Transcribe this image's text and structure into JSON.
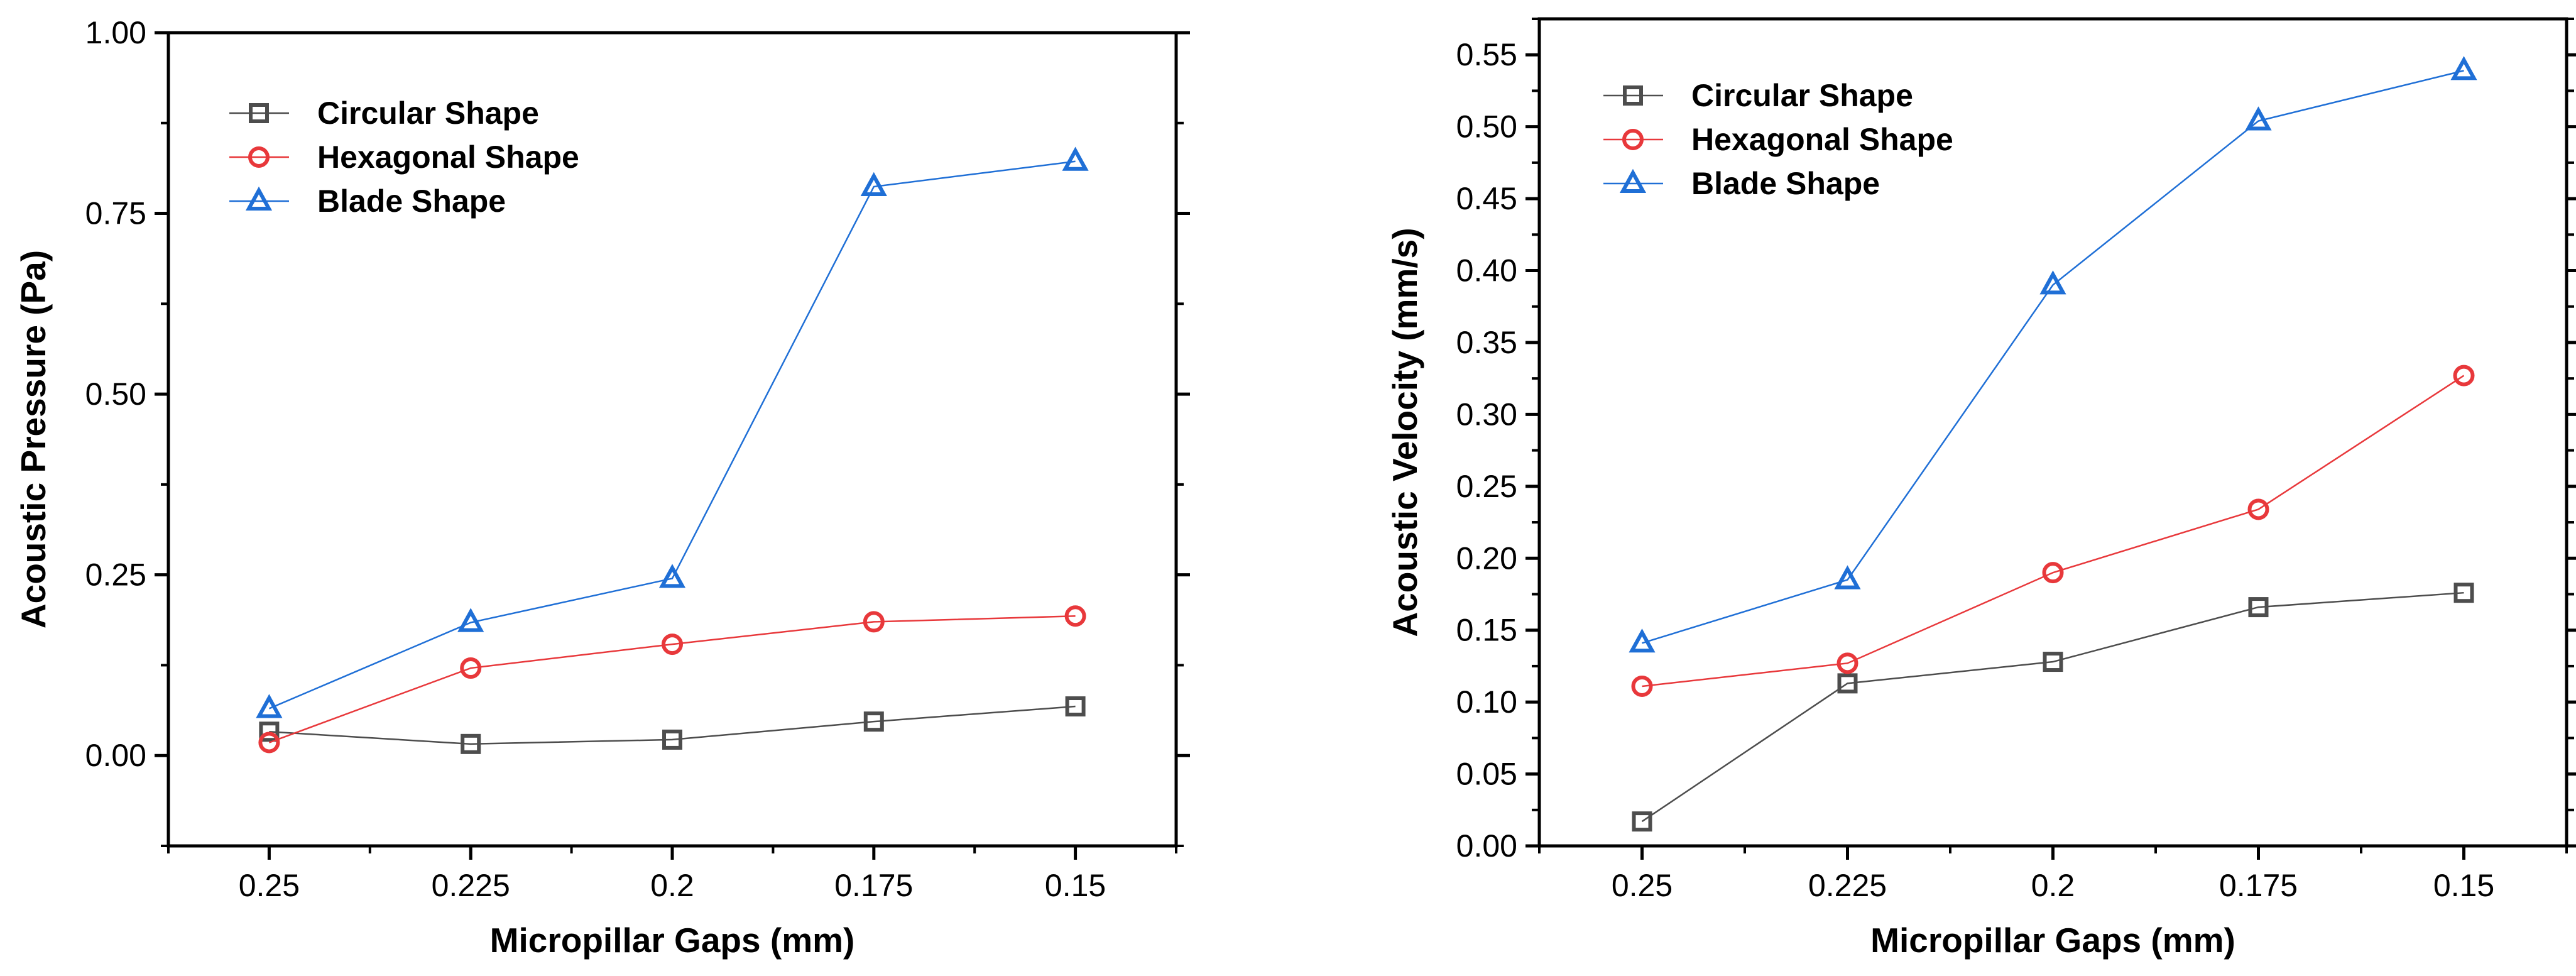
{
  "chart_data": [
    {
      "type": "line",
      "title": "",
      "xlabel": "Micropillar Gaps (mm)",
      "ylabel": "Acoustic Pressure (Pa)",
      "categories": [
        "0.25",
        "0.225",
        "0.2",
        "0.175",
        "0.15"
      ],
      "ylim": [
        -0.125,
        1.0
      ],
      "yticks": [
        0.0,
        0.25,
        0.5,
        0.75,
        1.0
      ],
      "ytick_labels": [
        "0.00",
        "0.25",
        "0.50",
        "0.75",
        "1.00"
      ],
      "legend_position": "top-left",
      "series": [
        {
          "name": "Circular Shape",
          "marker": "square",
          "color": "#4d4d4d",
          "values": [
            0.033,
            0.016,
            0.022,
            0.047,
            0.068
          ]
        },
        {
          "name": "Hexagonal Shape",
          "marker": "circle",
          "color": "#e8383b",
          "values": [
            0.018,
            0.121,
            0.154,
            0.185,
            0.193
          ]
        },
        {
          "name": "Blade Shape",
          "marker": "triangle",
          "color": "#1f6fd6",
          "values": [
            0.065,
            0.184,
            0.245,
            0.787,
            0.822
          ]
        }
      ]
    },
    {
      "type": "line",
      "title": "",
      "xlabel": "Micropillar Gaps (mm)",
      "ylabel": "Acoustic Velocity (mm/s)",
      "categories": [
        "0.25",
        "0.225",
        "0.2",
        "0.175",
        "0.15"
      ],
      "ylim": [
        0.0,
        0.575
      ],
      "yticks": [
        0.0,
        0.05,
        0.1,
        0.15,
        0.2,
        0.25,
        0.3,
        0.35,
        0.4,
        0.45,
        0.5,
        0.55
      ],
      "ytick_labels": [
        "0.00",
        "0.05",
        "0.10",
        "0.15",
        "0.20",
        "0.25",
        "0.30",
        "0.35",
        "0.40",
        "0.45",
        "0.50",
        "0.55"
      ],
      "legend_position": "top-left",
      "series": [
        {
          "name": "Circular Shape",
          "marker": "square",
          "color": "#4d4d4d",
          "values": [
            0.017,
            0.113,
            0.128,
            0.166,
            0.176
          ]
        },
        {
          "name": "Hexagonal Shape",
          "marker": "circle",
          "color": "#e8383b",
          "values": [
            0.111,
            0.127,
            0.19,
            0.234,
            0.327
          ]
        },
        {
          "name": "Blade Shape",
          "marker": "triangle",
          "color": "#1f6fd6",
          "values": [
            0.141,
            0.185,
            0.39,
            0.504,
            0.539
          ]
        }
      ]
    }
  ]
}
